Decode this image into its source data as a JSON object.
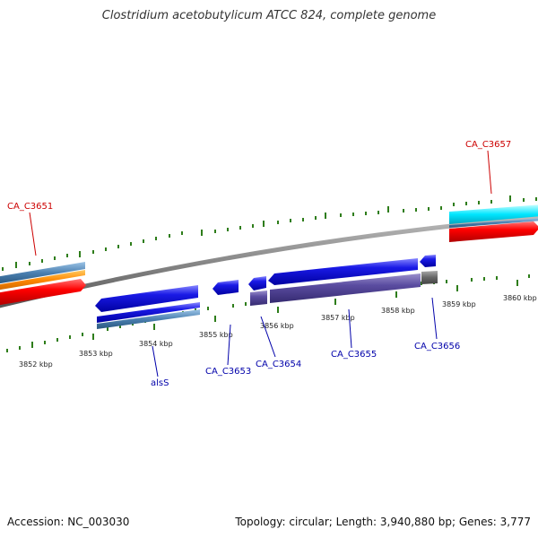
{
  "title": "Clostridium acetobutylicum ATCC 824, complete genome",
  "footer": {
    "accession": "Accession: NC_003030",
    "topology": "Topology: circular; Length: 3,940,880 bp; Genes: 3,777"
  },
  "colors": {
    "backbone": "#888888",
    "tick": "#2e7d1a",
    "label_forward": "#cc0000",
    "label_reverse": "#0000aa",
    "blue_gene": "#1a1ae6",
    "purple_gene": "#554499",
    "steel_blue": "#4a7fb0",
    "orange": "#ff8800",
    "red": "#ff0000",
    "cyan": "#00e6ff",
    "gray_gene": "#666666"
  },
  "scale_labels": [
    "3852 kbp",
    "3853 kbp",
    "3854 kbp",
    "3855 kbp",
    "3856 kbp",
    "3857 kbp",
    "3858 kbp",
    "3859 kbp",
    "3860 kbp"
  ],
  "gene_labels": {
    "forward": [
      "CA_C3651",
      "CA_C3657"
    ],
    "reverse": [
      "alsS",
      "CA_C3653",
      "CA_C3654",
      "CA_C3655",
      "CA_C3656"
    ]
  }
}
